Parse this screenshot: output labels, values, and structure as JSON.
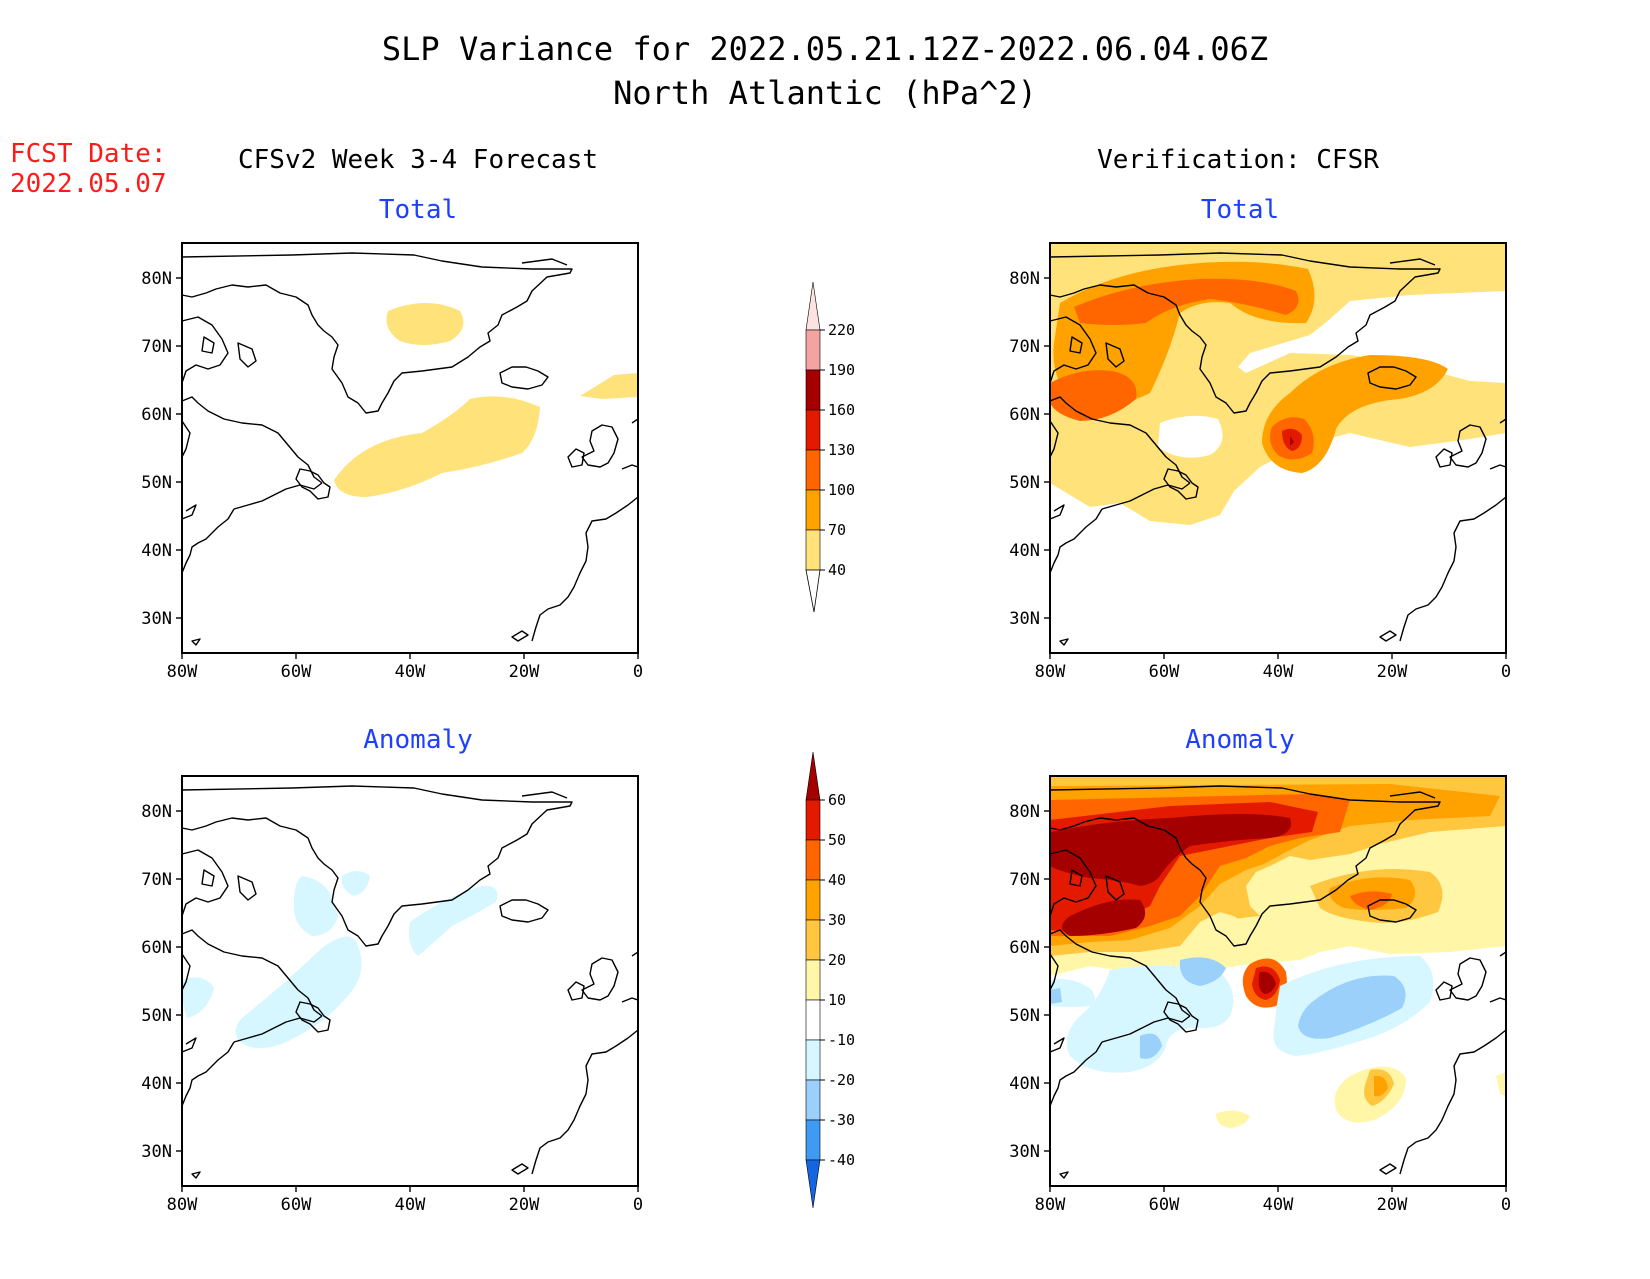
{
  "header": {
    "title_line1": "SLP Variance for 2022.05.21.12Z-2022.06.04.06Z",
    "title_line2": "North Atlantic (hPa^2)",
    "fcst_label": "FCST Date:",
    "fcst_date": "2022.05.07",
    "left_heading": "CFSv2 Week 3-4 Forecast",
    "right_heading": "Verification: CFSR"
  },
  "panels": {
    "forecast_total_title": "Total",
    "verify_total_title": "Total",
    "forecast_anomaly_title": "Anomaly",
    "verify_anomaly_title": "Anomaly"
  },
  "axes": {
    "lat_ticks": [
      "80N",
      "70N",
      "60N",
      "50N",
      "40N",
      "30N"
    ],
    "lon_ticks": [
      "80W",
      "60W",
      "40W",
      "20W",
      "0"
    ]
  },
  "colorbars": {
    "total": {
      "levels": [
        "220",
        "190",
        "160",
        "130",
        "100",
        "70",
        "40"
      ],
      "colors": [
        "#fde2e2",
        "#f4a3a3",
        "#a50000",
        "#e31a00",
        "#ff6600",
        "#ffa200",
        "#ffe27a"
      ]
    },
    "anomaly": {
      "levels": [
        "60",
        "50",
        "40",
        "30",
        "20",
        "10",
        "-10",
        "-20",
        "-30",
        "-40"
      ],
      "colors": [
        "#a50000",
        "#e31a00",
        "#ff6600",
        "#ffa200",
        "#ffc640",
        "#fff6a8",
        "#ffffff",
        "#d6f7ff",
        "#9bd0fb",
        "#3f9bf2",
        "#1466e0"
      ]
    }
  },
  "colors": {
    "title_text": "#000000",
    "panel_title": "#1f3fff",
    "fcst_text": "#ff1a1a",
    "coastline": "#000000"
  }
}
